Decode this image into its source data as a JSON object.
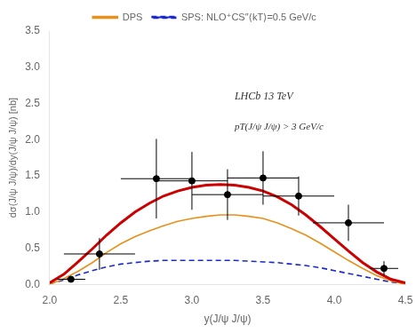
{
  "chart_data": {
    "type": "line",
    "xlabel": "y(J/ψ J/ψ)",
    "ylabel": "dσ(J/ψ J/ψ)/dy(J/ψ J/ψ) [nb]",
    "xlim": [
      2.0,
      4.5
    ],
    "ylim": [
      0.0,
      3.5
    ],
    "xticks": [
      {
        "value": 2.0,
        "label": "2.0"
      },
      2.5,
      {
        "value": 3.0,
        "label": "3.0"
      },
      3.5,
      {
        "value": 4.0,
        "label": "4.0"
      },
      4.5
    ],
    "yticks": [
      {
        "value": 0,
        "label": "0.0"
      },
      0.5,
      {
        "value": 1.0,
        "label": "1.0"
      },
      1.5,
      {
        "value": 2.0,
        "label": "2.0"
      },
      2.5,
      {
        "value": 3.0,
        "label": "3.0"
      },
      3.5
    ],
    "grid": false,
    "legend": "top",
    "background_color": "#FFFFFF",
    "annotations": [
      "LHCb 13 TeV",
      "pT(J/ψ J/ψ) > 3 GeV/c"
    ],
    "series": [
      {
        "color": "#CC0000",
        "line_style": "solid",
        "x": [
          2.0,
          2.1,
          2.2,
          2.3,
          2.4,
          2.5,
          2.6,
          2.7,
          2.8,
          2.9,
          3.0,
          3.1,
          3.2,
          3.3,
          3.4,
          3.5,
          3.6,
          3.7,
          3.8,
          3.9,
          4.0,
          4.1,
          4.2,
          4.3,
          4.4,
          4.5
        ],
        "values": [
          0.02,
          0.14,
          0.31,
          0.49,
          0.68,
          0.85,
          1.0,
          1.12,
          1.22,
          1.29,
          1.34,
          1.37,
          1.38,
          1.37,
          1.34,
          1.29,
          1.21,
          1.1,
          0.96,
          0.8,
          0.63,
          0.46,
          0.3,
          0.17,
          0.07,
          0.02
        ]
      },
      {
        "name": "DPS",
        "color": "#E8901A",
        "line_style": "solid",
        "x": [
          2.0,
          2.1,
          2.2,
          2.3,
          2.4,
          2.5,
          2.6,
          2.7,
          2.8,
          2.9,
          3.0,
          3.1,
          3.2,
          3.3,
          3.4,
          3.5,
          3.6,
          3.7,
          3.8,
          3.9,
          4.0,
          4.1,
          4.2,
          4.3,
          4.4,
          4.5
        ],
        "values": [
          0.0,
          0.08,
          0.18,
          0.3,
          0.44,
          0.56,
          0.66,
          0.74,
          0.81,
          0.87,
          0.91,
          0.94,
          0.96,
          0.96,
          0.94,
          0.91,
          0.85,
          0.77,
          0.68,
          0.57,
          0.45,
          0.33,
          0.22,
          0.12,
          0.05,
          0.0
        ]
      },
      {
        "name": "SPS: NLO⁺CS″⟨kT⟩=0.5 GeV/c",
        "color": "#1a28cc",
        "line_style": "dashed",
        "x": [
          2.0,
          2.1,
          2.2,
          2.3,
          2.4,
          2.5,
          2.6,
          2.7,
          2.8,
          2.9,
          3.0,
          3.1,
          3.2,
          3.3,
          3.4,
          3.5,
          3.6,
          3.7,
          3.8,
          3.9,
          4.0,
          4.1,
          4.2,
          4.3,
          4.4,
          4.5
        ],
        "values": [
          0.01,
          0.06,
          0.13,
          0.19,
          0.24,
          0.28,
          0.3,
          0.32,
          0.33,
          0.33,
          0.33,
          0.33,
          0.33,
          0.33,
          0.32,
          0.31,
          0.3,
          0.28,
          0.26,
          0.23,
          0.19,
          0.15,
          0.11,
          0.07,
          0.03,
          0.01
        ]
      },
      {
        "type": "scatter",
        "color": "black",
        "marker": "circle",
        "x": [
          2.15,
          2.35,
          2.75,
          3.0,
          3.25,
          3.5,
          3.75,
          4.1,
          4.35
        ],
        "values": [
          0.07,
          0.42,
          1.46,
          1.43,
          1.24,
          1.47,
          1.22,
          0.85,
          0.22
        ],
        "xerr_lo": [
          0.1,
          0.25,
          0.25,
          0.25,
          0.25,
          0.25,
          0.25,
          0.25,
          0.1
        ],
        "xerr_hi": [
          0.1,
          0.25,
          0.25,
          0.25,
          0.25,
          0.25,
          0.25,
          0.25,
          0.1
        ],
        "yerr_lo": [
          0.04,
          0.22,
          0.55,
          0.4,
          0.35,
          0.37,
          0.27,
          0.25,
          0.1
        ],
        "yerr_hi": [
          0.04,
          0.22,
          0.55,
          0.4,
          0.35,
          0.37,
          0.27,
          0.25,
          0.1
        ]
      }
    ]
  }
}
